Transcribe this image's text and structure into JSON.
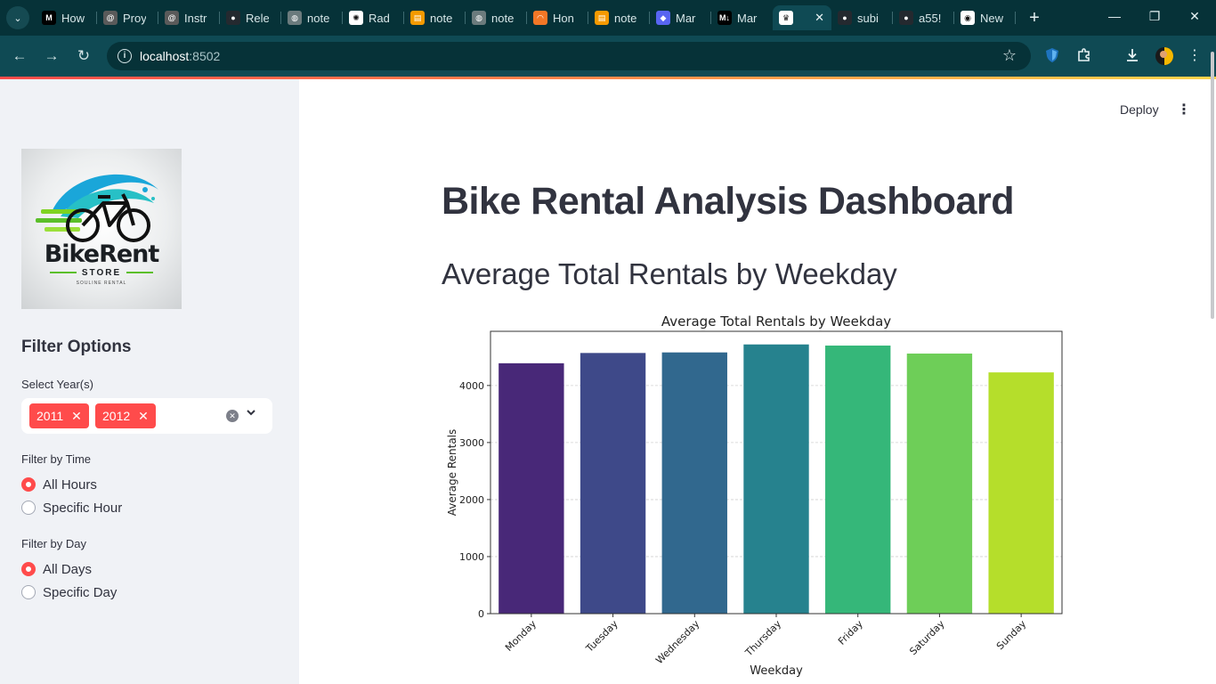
{
  "browser": {
    "tabs": [
      {
        "title": "How",
        "icon": "medium-icon",
        "color": "#000000"
      },
      {
        "title": "Proy",
        "icon": "spiral-icon",
        "color": "#5a5a5a"
      },
      {
        "title": "Instr",
        "icon": "spiral-icon",
        "color": "#5a5a5a"
      },
      {
        "title": "Rele",
        "icon": "github-icon",
        "color": "#24292f"
      },
      {
        "title": "note",
        "icon": "globe-icon",
        "color": "#6b7b7d"
      },
      {
        "title": "Rad",
        "icon": "openai-icon",
        "color": "#ffffff"
      },
      {
        "title": "note",
        "icon": "notebook-icon",
        "color": "#f59a00"
      },
      {
        "title": "note",
        "icon": "globe-icon",
        "color": "#6b7b7d"
      },
      {
        "title": "Hon",
        "icon": "jupyter-icon",
        "color": "#f37726"
      },
      {
        "title": "note",
        "icon": "notebook-icon",
        "color": "#f59a00"
      },
      {
        "title": "Mar",
        "icon": "gamepad-icon",
        "color": "#5865f2"
      },
      {
        "title": "Mar",
        "icon": "markdown-icon",
        "color": "#000000"
      },
      {
        "title": "",
        "icon": "streamlit-crown-icon",
        "color": "#ffffff",
        "active": true
      },
      {
        "title": "subi",
        "icon": "github-icon",
        "color": "#24292f"
      },
      {
        "title": "a55!",
        "icon": "github-icon",
        "color": "#24292f"
      },
      {
        "title": "New",
        "icon": "chrome-icon",
        "color": "#ffffff"
      }
    ],
    "url_host": "localhost",
    "url_port": ":8502"
  },
  "header": {
    "deploy_label": "Deploy"
  },
  "sidebar": {
    "logo": {
      "name": "BikeRent",
      "sub": "STORE",
      "tag": "SOULINE RENTAL"
    },
    "filter_heading": "Filter Options",
    "year_label": "Select Year(s)",
    "years": [
      "2011",
      "2012"
    ],
    "time_label": "Filter by Time",
    "time_options": [
      {
        "label": "All Hours",
        "selected": true
      },
      {
        "label": "Specific Hour",
        "selected": false
      }
    ],
    "day_label": "Filter by Day",
    "day_options": [
      {
        "label": "All Days",
        "selected": true
      },
      {
        "label": "Specific Day",
        "selected": false
      }
    ]
  },
  "main": {
    "title": "Bike Rental Analysis Dashboard",
    "section_title": "Average Total Rentals by Weekday"
  },
  "chart_data": {
    "type": "bar",
    "title": "Average Total Rentals by Weekday",
    "xlabel": "Weekday",
    "ylabel": "Average Rentals",
    "categories": [
      "Monday",
      "Tuesday",
      "Wednesday",
      "Thursday",
      "Friday",
      "Saturday",
      "Sunday"
    ],
    "values": [
      4390,
      4570,
      4580,
      4720,
      4700,
      4560,
      4230
    ],
    "colors": [
      "#482878",
      "#3e4989",
      "#31688e",
      "#26828e",
      "#35b779",
      "#6ece58",
      "#b5de2b"
    ],
    "yticks": [
      0,
      1000,
      2000,
      3000,
      4000
    ],
    "ylim": [
      0,
      4950
    ],
    "grid": "y"
  }
}
